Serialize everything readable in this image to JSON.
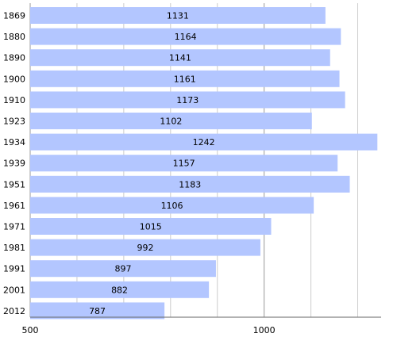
{
  "chart_data": {
    "type": "bar",
    "orientation": "horizontal",
    "categories": [
      "1869",
      "1880",
      "1890",
      "1900",
      "1910",
      "1923",
      "1934",
      "1939",
      "1951",
      "1961",
      "1971",
      "1981",
      "1991",
      "2001",
      "2012"
    ],
    "values": [
      1131,
      1164,
      1141,
      1161,
      1173,
      1102,
      1242,
      1157,
      1183,
      1106,
      1015,
      992,
      897,
      882,
      787
    ],
    "value_labels": [
      "1131",
      "1164",
      "1141",
      "1161",
      "1173",
      "1102",
      "1242",
      "1157",
      "1183",
      "1106",
      "1015",
      "992",
      "897",
      "882",
      "787"
    ],
    "title": "",
    "xlabel": "",
    "ylabel": "",
    "xlim": [
      500,
      1250
    ],
    "major_ticks": [
      500,
      1000
    ],
    "major_tick_labels": [
      "500",
      "1000"
    ],
    "minor_ticks": [
      600,
      700,
      800,
      900,
      1100,
      1200
    ],
    "grid": true,
    "bar_color": "#b3c6ff"
  }
}
